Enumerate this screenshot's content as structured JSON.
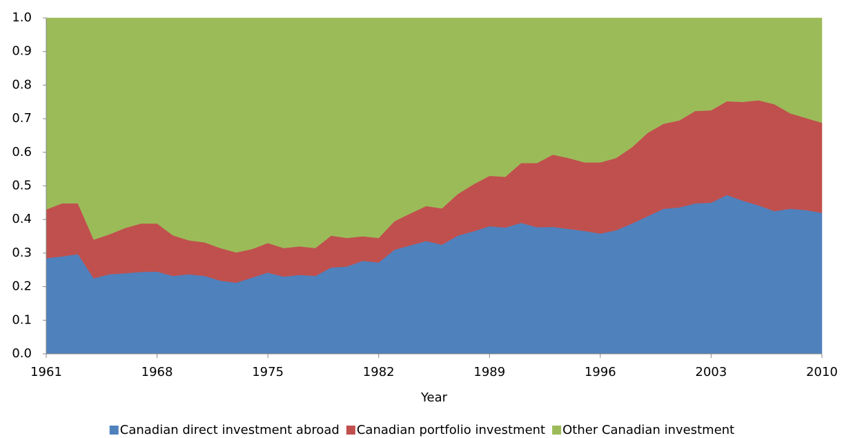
{
  "chart_data": {
    "type": "stacked_area",
    "x_label": "Year",
    "x": [
      1961,
      1962,
      1963,
      1964,
      1965,
      1966,
      1967,
      1968,
      1969,
      1970,
      1971,
      1972,
      1973,
      1974,
      1975,
      1976,
      1977,
      1978,
      1979,
      1980,
      1981,
      1982,
      1983,
      1984,
      1985,
      1986,
      1987,
      1988,
      1989,
      1990,
      1991,
      1992,
      1993,
      1994,
      1995,
      1996,
      1997,
      1998,
      1999,
      2000,
      2001,
      2002,
      2003,
      2004,
      2005,
      2006,
      2007,
      2008,
      2009,
      2010
    ],
    "series": [
      {
        "name": "Canadian direct investment abroad",
        "color": "#4f81bd",
        "values": [
          0.285,
          0.29,
          0.297,
          0.225,
          0.237,
          0.24,
          0.244,
          0.245,
          0.232,
          0.237,
          0.232,
          0.218,
          0.212,
          0.227,
          0.242,
          0.23,
          0.235,
          0.232,
          0.257,
          0.26,
          0.277,
          0.272,
          0.31,
          0.323,
          0.336,
          0.325,
          0.352,
          0.365,
          0.38,
          0.376,
          0.39,
          0.377,
          0.378,
          0.372,
          0.366,
          0.358,
          0.368,
          0.388,
          0.41,
          0.432,
          0.436,
          0.448,
          0.45,
          0.473,
          0.456,
          0.442,
          0.425,
          0.432,
          0.428,
          0.42
        ]
      },
      {
        "name": "Canadian portfolio investment",
        "color": "#c0504d",
        "values": [
          0.145,
          0.158,
          0.151,
          0.115,
          0.119,
          0.135,
          0.144,
          0.143,
          0.121,
          0.101,
          0.1,
          0.097,
          0.09,
          0.085,
          0.088,
          0.085,
          0.085,
          0.083,
          0.095,
          0.085,
          0.073,
          0.073,
          0.085,
          0.095,
          0.104,
          0.108,
          0.124,
          0.14,
          0.15,
          0.151,
          0.178,
          0.191,
          0.215,
          0.211,
          0.204,
          0.212,
          0.215,
          0.227,
          0.248,
          0.253,
          0.259,
          0.275,
          0.275,
          0.279,
          0.294,
          0.313,
          0.318,
          0.284,
          0.274,
          0.268
        ]
      },
      {
        "name": "Other Canadian investment",
        "color": "#9bbb59",
        "values": [
          0.57,
          0.552,
          0.552,
          0.66,
          0.644,
          0.625,
          0.612,
          0.612,
          0.647,
          0.662,
          0.668,
          0.685,
          0.698,
          0.688,
          0.67,
          0.685,
          0.68,
          0.685,
          0.648,
          0.655,
          0.65,
          0.655,
          0.605,
          0.582,
          0.56,
          0.567,
          0.524,
          0.495,
          0.47,
          0.473,
          0.432,
          0.432,
          0.407,
          0.417,
          0.43,
          0.43,
          0.417,
          0.385,
          0.342,
          0.315,
          0.305,
          0.277,
          0.275,
          0.248,
          0.25,
          0.245,
          0.257,
          0.284,
          0.298,
          0.312
        ]
      }
    ],
    "xlim": [
      1961,
      2010
    ],
    "xticks": [
      1961,
      1968,
      1975,
      1982,
      1989,
      1996,
      2003,
      2010
    ],
    "ylim": [
      0,
      1
    ],
    "yticks": [
      {
        "value": 0,
        "label": "0.0"
      },
      0.1,
      0.2,
      0.3,
      0.4,
      0.5,
      0.6,
      0.7,
      0.8,
      0.9,
      {
        "value": 1,
        "label": "1.0"
      }
    ],
    "legend": "bottom"
  }
}
